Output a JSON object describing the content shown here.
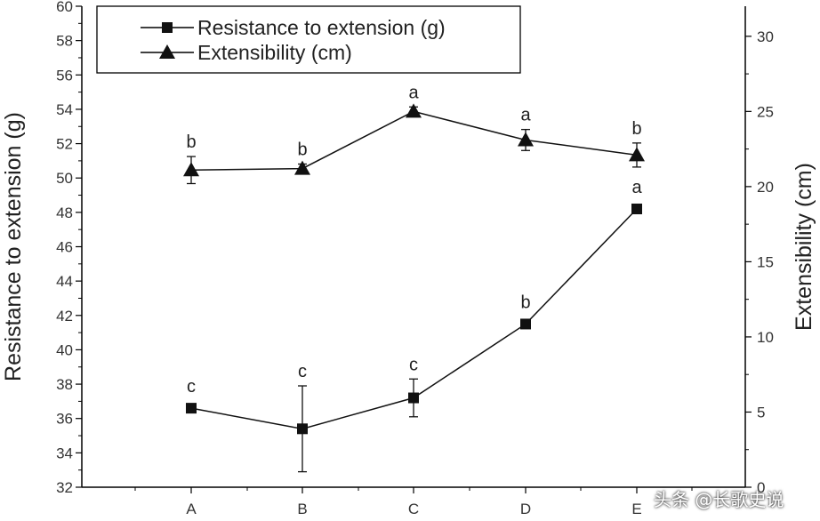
{
  "chart_data": {
    "type": "line",
    "categories": [
      "A",
      "B",
      "C",
      "D",
      "E"
    ],
    "left_axis": {
      "label": "Resistance to extension (g)",
      "ylim": [
        32,
        60
      ],
      "ticks": [
        "32",
        "34",
        "36",
        "38",
        "40",
        "42",
        "44",
        "46",
        "48",
        "50",
        "52",
        "54",
        "56",
        "58",
        "60"
      ]
    },
    "right_axis": {
      "label": "Extensibility (cm)",
      "ylim": [
        0,
        32
      ],
      "ticks": [
        "0",
        "5",
        "10",
        "15",
        "20",
        "25",
        "30"
      ]
    },
    "series": [
      {
        "name": "Resistance to extension (g)",
        "marker": "square",
        "axis": "left",
        "values": [
          36.6,
          35.4,
          37.2,
          41.5,
          48.2
        ],
        "errors": [
          0.0,
          2.5,
          1.1,
          0.0,
          0.0
        ],
        "letters": [
          "c",
          "c",
          "c",
          "b",
          "a"
        ]
      },
      {
        "name": "Extensibility (cm)",
        "marker": "triangle",
        "axis": "right",
        "values": [
          21.1,
          21.2,
          25.0,
          23.1,
          22.1
        ],
        "errors": [
          0.9,
          0.3,
          0.3,
          0.7,
          0.8
        ],
        "letters": [
          "b",
          "b",
          "a",
          "a",
          "b"
        ]
      }
    ],
    "legend": {
      "entries": [
        "Resistance to extension (g)",
        "Extensibility (cm)"
      ],
      "position": "top-left"
    }
  },
  "watermark": "头条 @长歌史说"
}
